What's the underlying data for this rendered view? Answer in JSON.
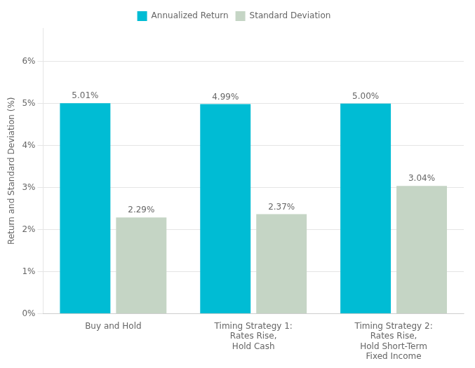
{
  "chart_data": {
    "type": "bar",
    "categories": [
      "Buy and Hold",
      "Timing Strategy 1:\nRates Rise,\nHold Cash",
      "Timing Strategy 2:\nRates Rise,\nHold Short-Term\nFixed Income"
    ],
    "series": [
      {
        "name": "Annualized Return",
        "color": "#00BCD4",
        "values": [
          5.01,
          4.99,
          5.0
        ],
        "value_labels": [
          "5.01%",
          "4.99%",
          "5.00%"
        ]
      },
      {
        "name": "Standard Deviation",
        "color": "#C5D5C5",
        "values": [
          2.29,
          2.37,
          3.04
        ],
        "value_labels": [
          "2.29%",
          "2.37%",
          "3.04%"
        ]
      }
    ],
    "ylabel": "Return and Standard Deviation (%)",
    "ylim": [
      0,
      6.8
    ],
    "yticks": [
      {
        "value": 0,
        "label": "0%"
      },
      {
        "value": 1,
        "label": "1%"
      },
      {
        "value": 2,
        "label": "2%"
      },
      {
        "value": 3,
        "label": "3%"
      },
      {
        "value": 4,
        "label": "4%"
      },
      {
        "value": 5,
        "label": "5%"
      },
      {
        "value": 6,
        "label": "6%"
      }
    ],
    "grid": true,
    "legend": "top",
    "data_labels": true
  }
}
